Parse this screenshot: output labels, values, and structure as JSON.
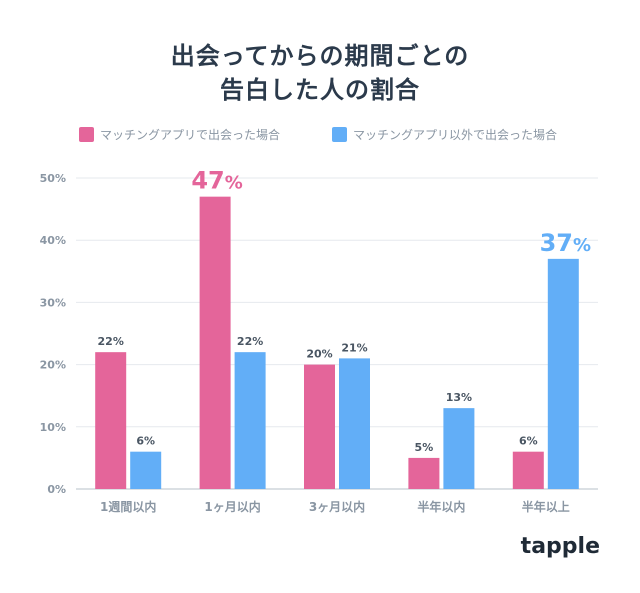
{
  "title_lines": [
    "出会ってからの期間ごとの",
    "告白した人の割合"
  ],
  "colors": {
    "app": "#e4659a",
    "other": "#62aef7",
    "axis": "#8a96a3",
    "grid": "#e6e9ee"
  },
  "brand": "tapple",
  "chart_data": {
    "type": "bar",
    "categories": [
      "1週間以内",
      "1ヶ月以内",
      "3ヶ月以内",
      "半年以内",
      "半年以上"
    ],
    "series": [
      {
        "name": "マッチングアプリで出会った場合",
        "values": [
          22,
          47,
          20,
          5,
          6
        ],
        "color": "#e4659a"
      },
      {
        "name": "マッチングアプリ以外で出会った場合",
        "values": [
          6,
          22,
          21,
          13,
          37
        ],
        "color": "#62aef7"
      }
    ],
    "ylim": [
      0,
      50
    ],
    "yticks": [
      0,
      10,
      20,
      30,
      40,
      50
    ],
    "ytick_labels": [
      "0%",
      "10%",
      "20%",
      "30%",
      "40%",
      "50%"
    ],
    "highlights": [
      {
        "series": 0,
        "category": 1,
        "label": "47%"
      },
      {
        "series": 1,
        "category": 4,
        "label": "37%"
      }
    ],
    "grid": true,
    "legend": "top"
  }
}
